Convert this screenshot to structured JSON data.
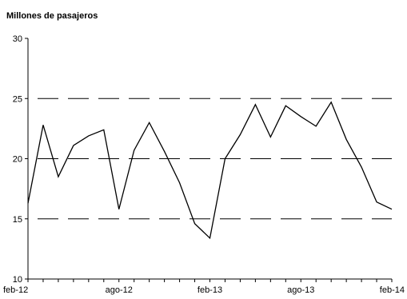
{
  "chart_data": {
    "type": "line",
    "ylabel": "Millones de pasajeros",
    "xlabel": "",
    "title": "",
    "ylim": [
      10,
      30
    ],
    "yticks": [
      10,
      15,
      20,
      25,
      30
    ],
    "grid": "horizontal dashed at 15, 20, 25",
    "legend": "none",
    "x_tick_labels": [
      {
        "index": 0,
        "label": "feb-12"
      },
      {
        "index": 6,
        "label": "ago-12"
      },
      {
        "index": 12,
        "label": "feb-13"
      },
      {
        "index": 18,
        "label": "ago-13"
      },
      {
        "index": 24,
        "label": "feb-14"
      }
    ],
    "x": [
      "feb-12",
      "mar-12",
      "abr-12",
      "may-12",
      "jun-12",
      "jul-12",
      "ago-12",
      "sep-12",
      "oct-12",
      "nov-12",
      "dic-12",
      "ene-13",
      "feb-13",
      "mar-13",
      "abr-13",
      "may-13",
      "jun-13",
      "jul-13",
      "ago-13",
      "sep-13",
      "oct-13",
      "nov-13",
      "dic-13",
      "ene-14",
      "feb-14"
    ],
    "series": [
      {
        "values": [
          16.3,
          22.8,
          18.5,
          21.1,
          21.9,
          22.4,
          15.8,
          20.7,
          23.0,
          20.6,
          18.0,
          14.6,
          13.4,
          20.0,
          22.0,
          24.5,
          21.8,
          24.4,
          23.5,
          22.7,
          24.7,
          21.6,
          19.3,
          16.4,
          15.8
        ]
      }
    ],
    "colors": {
      "line": "#000000",
      "axis": "#000000",
      "grid": "#000000"
    }
  }
}
